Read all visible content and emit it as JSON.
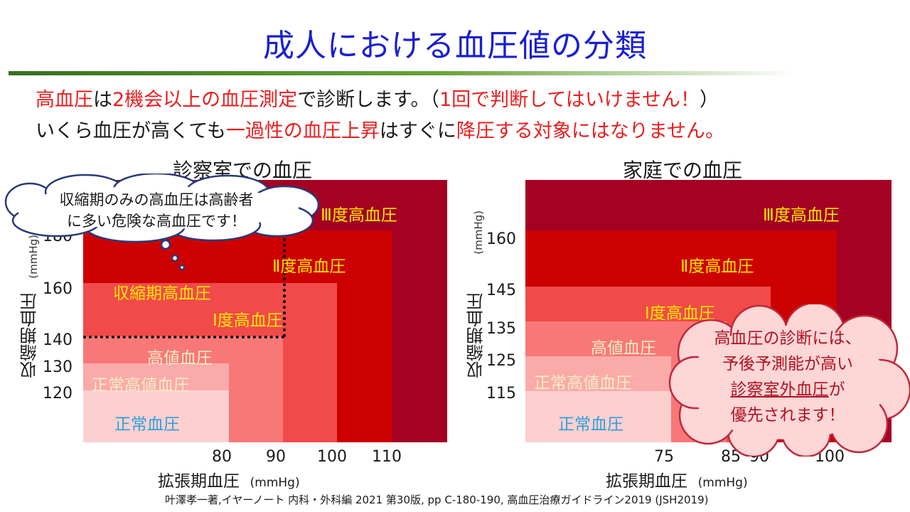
{
  "title": "成人における血圧値の分類",
  "intro": {
    "line1": [
      {
        "text": "高血圧",
        "red": true
      },
      {
        "text": "は",
        "red": false
      },
      {
        "text": "2機会以上の血圧測定",
        "red": true
      },
      {
        "text": "で診断します。（",
        "red": false
      },
      {
        "text": "1回で判断してはいけません！",
        "red": true
      },
      {
        "text": "）",
        "red": false
      }
    ],
    "line2": [
      {
        "text": "いくら血圧が高くても",
        "red": false
      },
      {
        "text": "一過性の血圧上昇",
        "red": true
      },
      {
        "text": "はすぐに",
        "red": false
      },
      {
        "text": "降圧する対象にはなりません。",
        "red": true
      }
    ]
  },
  "office_chart": {
    "title": "診察室での血圧",
    "x_label": "拡張期血圧",
    "x_unit": "(mmHg)",
    "y_label": "収縮期血圧",
    "y_unit": "(mmHg)",
    "y_ticks": [
      "180",
      "160",
      "140",
      "130",
      "120"
    ],
    "x_ticks": [
      "80",
      "90",
      "100",
      "110"
    ],
    "zones": {
      "grade3": "Ⅲ度高血圧",
      "grade2": "Ⅱ度高血圧",
      "isolated": "収縮期高血圧",
      "grade1": "Ⅰ度高血圧",
      "elevated": "高値血圧",
      "high_normal": "正常高値血圧",
      "normal": "正常血圧"
    },
    "callout": {
      "line1": "収縮期のみの高血圧は高齢者",
      "line2": "に多い危険な高血圧です！"
    }
  },
  "home_chart": {
    "title": "家庭での血圧",
    "x_label": "拡張期血圧",
    "x_unit": "(mmHg)",
    "y_label": "収縮期血圧",
    "y_unit": "(mmHg)",
    "y_ticks": [
      "160",
      "145",
      "135",
      "125",
      "115"
    ],
    "x_ticks": [
      "75",
      "85",
      "90",
      "100"
    ],
    "zones": {
      "grade3": "Ⅲ度高血圧",
      "grade2": "Ⅱ度高血圧",
      "grade1": "Ⅰ度高血圧",
      "elevated": "高値血圧",
      "high_normal": "正常高値血圧",
      "normal": "正常血圧"
    },
    "callout": {
      "line1": "高血圧の診断には、",
      "line2": "予後予測能が高い",
      "line3": "診察室外血圧",
      "line4": "が",
      "line5": "優先されます！"
    }
  },
  "colors": {
    "grade3": "#a40123",
    "grade2": "#cc0000",
    "grade1": "#f04a4a",
    "elevated": "#f87878",
    "high_normal": "#fbaaaa",
    "normal": "#fdd0d0",
    "label_yellow": "#ffe800",
    "label_beige": "#f4edc4",
    "label_blue": "#2ea0dd"
  },
  "citation": "叶澤孝一著,イヤーノート 内科・外科編 2021 第30版, pp C-180-190, 高血圧治療ガイドライン2019 (JSH2019)"
}
